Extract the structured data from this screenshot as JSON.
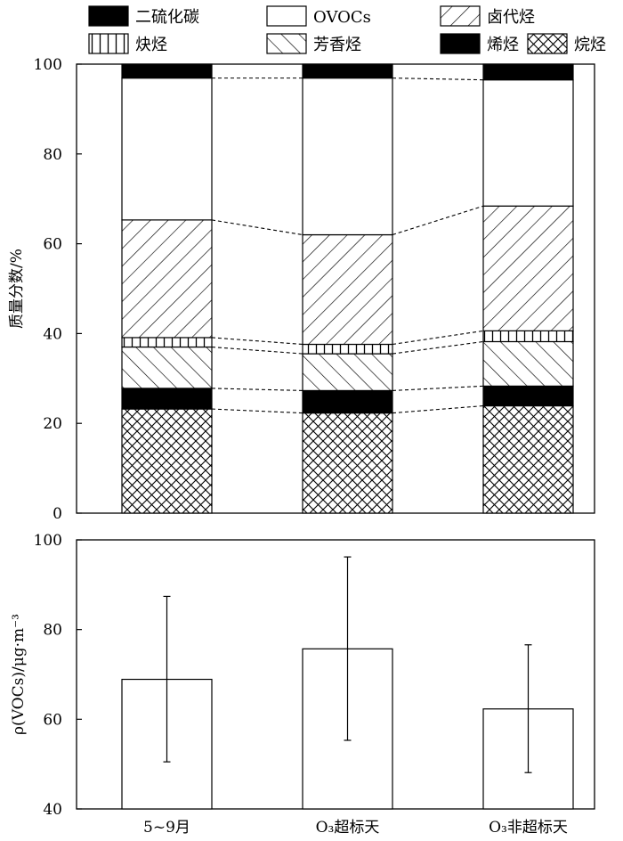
{
  "legend": [
    {
      "label": "二硫化碳",
      "pattern": "solid"
    },
    {
      "label": "OVOCs",
      "pattern": "white"
    },
    {
      "label": "卤代烃",
      "pattern": "back-diag"
    },
    {
      "label": "炔烃",
      "pattern": "vertical"
    },
    {
      "label": "芳香烃",
      "pattern": "fwd-diag"
    },
    {
      "label": "烯烃",
      "pattern": "solid"
    },
    {
      "label": "烷烃",
      "pattern": "crosshatch"
    }
  ],
  "chart_data": [
    {
      "type": "bar",
      "stacked": true,
      "ylabel": "质量分数/%",
      "ylim": [
        0,
        100
      ],
      "yticks": [
        "0",
        "20",
        "40",
        "60",
        "80",
        "100"
      ],
      "categories": [
        "5~9月",
        "O₃超标天",
        "O₃非超标天"
      ],
      "connector_lines": "dashed",
      "series": [
        {
          "name": "烷烃",
          "pattern": "crosshatch",
          "values": [
            23.2,
            22.3,
            23.9
          ]
        },
        {
          "name": "烯烃",
          "pattern": "solid",
          "values": [
            4.6,
            5.0,
            4.4
          ]
        },
        {
          "name": "芳香烃",
          "pattern": "fwd-diag",
          "values": [
            9.2,
            8.2,
            9.9
          ]
        },
        {
          "name": "炔烃",
          "pattern": "vertical",
          "values": [
            2.1,
            2.1,
            2.4
          ]
        },
        {
          "name": "卤代烃",
          "pattern": "back-diag",
          "values": [
            26.2,
            24.4,
            27.8
          ]
        },
        {
          "name": "OVOCs",
          "pattern": "white",
          "values": [
            31.6,
            34.9,
            28.1
          ]
        },
        {
          "name": "二硫化碳",
          "pattern": "solid",
          "values": [
            3.1,
            3.1,
            3.5
          ]
        }
      ]
    },
    {
      "type": "bar",
      "ylabel": "ρ(VOCs)/μg·m⁻³",
      "ylim": [
        40,
        100
      ],
      "yticks": [
        "40",
        "60",
        "80",
        "100"
      ],
      "categories": [
        "5~9月",
        "O₃超标天",
        "O₃非超标天"
      ],
      "values": [
        68.9,
        75.7,
        62.3
      ],
      "error_low": [
        50.5,
        55.3,
        48.1
      ],
      "error_high": [
        87.4,
        96.2,
        76.6
      ]
    }
  ]
}
